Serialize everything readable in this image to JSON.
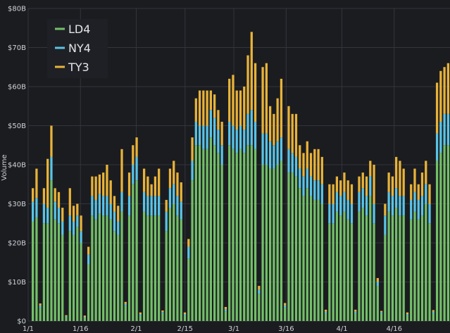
{
  "chart_data": {
    "type": "bar",
    "stacked": true,
    "ylabel": "Volume",
    "y_ticks": [
      "$0",
      "$10B",
      "$20B",
      "$30B",
      "$40B",
      "$50B",
      "$60B",
      "$70B",
      "$80B"
    ],
    "ylim": [
      0,
      80
    ],
    "y_unit": "billions USD",
    "x_ticks": [
      {
        "label": "1/1",
        "day": 0
      },
      {
        "label": "1/16",
        "day": 15
      },
      {
        "label": "2/1",
        "day": 31
      },
      {
        "label": "2/15",
        "day": 45
      },
      {
        "label": "3/1",
        "day": 59
      },
      {
        "label": "3/16",
        "day": 74
      },
      {
        "label": "4/1",
        "day": 90
      },
      {
        "label": "4/16",
        "day": 105
      }
    ],
    "xlim": [
      0,
      121
    ],
    "legend_position": "top-left",
    "grid": true,
    "series": [
      {
        "name": "LD4",
        "color": "#73bf69",
        "values": [
          25.5,
          26.5,
          3.5,
          25,
          25,
          36,
          26,
          25,
          22,
          1,
          23,
          22,
          24,
          20,
          0.8,
          14.5,
          27,
          26,
          27.5,
          27,
          27,
          26,
          23,
          22,
          28,
          4,
          27,
          35,
          36,
          1.5,
          28,
          27,
          27,
          27,
          27,
          2,
          23,
          29,
          30,
          27,
          26,
          1.5,
          16,
          36,
          45,
          45,
          44,
          44,
          47,
          45,
          43,
          40,
          2.5,
          45,
          44,
          43,
          44,
          43,
          45,
          45,
          44,
          7,
          40,
          40,
          39,
          39,
          40,
          41,
          3.5,
          38,
          38,
          37,
          34,
          32,
          34,
          32,
          31,
          31,
          30,
          2,
          25,
          25,
          28,
          27,
          28,
          26,
          25,
          2,
          28,
          29,
          27,
          32,
          25,
          9,
          2,
          22,
          28,
          27,
          29,
          27,
          27,
          1.5,
          26,
          28,
          26,
          27,
          30,
          25,
          2,
          41,
          43,
          45,
          45
        ]
      },
      {
        "name": "NY4",
        "color": "#5ac4e5",
        "values": [
          5,
          5,
          0.5,
          5,
          4,
          6,
          4.5,
          4,
          3.5,
          0.2,
          4,
          3.5,
          3,
          3,
          0.2,
          2.5,
          5,
          5,
          5,
          5,
          5,
          4,
          5,
          3.5,
          5,
          0.4,
          5,
          5,
          6,
          0.3,
          5,
          5,
          5,
          5,
          5,
          0.3,
          5,
          5,
          5,
          5,
          4.5,
          0.3,
          3,
          5,
          6,
          5,
          6,
          6,
          7,
          7,
          6,
          5,
          0.5,
          6,
          6,
          6,
          6,
          6,
          8,
          9,
          7,
          1,
          8,
          8,
          7,
          6,
          6,
          6,
          0.5,
          6,
          5,
          5,
          5,
          5,
          5,
          5,
          5,
          5,
          5,
          0.4,
          5,
          5,
          5,
          5,
          5,
          5,
          5,
          0.4,
          5,
          5,
          5,
          5,
          5,
          1,
          0.3,
          5,
          5,
          5,
          5,
          5,
          5,
          0.3,
          5,
          5,
          5,
          5,
          5,
          5,
          0.4,
          7,
          8,
          8,
          8
        ]
      },
      {
        "name": "TY3",
        "color": "#e8b33a",
        "values": [
          3.5,
          7.5,
          0.5,
          4,
          12.5,
          8,
          3.5,
          4,
          3.5,
          0.3,
          7,
          4,
          3,
          4,
          0.4,
          2,
          5,
          6,
          5,
          6,
          8,
          6,
          4,
          4,
          11,
          0.5,
          6,
          5,
          5,
          0.4,
          6,
          5,
          3,
          5,
          7,
          0.4,
          3,
          5,
          6,
          6,
          5,
          0.4,
          2,
          6,
          6,
          9,
          9,
          9,
          5,
          6,
          5,
          6,
          0.6,
          11,
          13,
          10,
          9,
          11,
          15,
          20,
          15,
          1,
          17,
          18,
          9,
          8,
          11,
          15,
          0.6,
          11,
          10,
          11,
          6,
          6,
          7,
          6,
          8,
          8,
          7,
          0.5,
          5,
          5,
          4,
          4,
          5,
          5,
          5,
          0.5,
          4,
          4,
          5,
          4,
          10,
          1,
          0.3,
          3,
          5,
          5,
          8,
          9,
          7,
          0.4,
          4,
          6,
          4,
          6,
          6,
          5,
          0.4,
          13,
          13,
          12,
          13
        ]
      }
    ]
  }
}
